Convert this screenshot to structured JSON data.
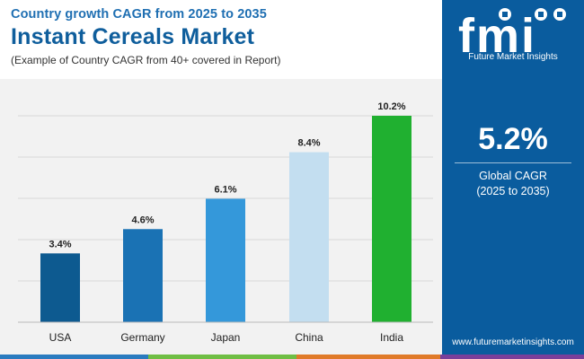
{
  "header": {
    "subtitle": "Country growth CAGR from 2025 to 2035",
    "title": "Instant Cereals Market",
    "note": "(Example of Country CAGR from 40+ covered in Report)"
  },
  "chart_data": {
    "type": "bar",
    "categories": [
      "USA",
      "Germany",
      "Japan",
      "China",
      "India"
    ],
    "values": [
      3.4,
      4.6,
      6.1,
      8.4,
      10.2
    ],
    "value_labels": [
      "3.4%",
      "4.6%",
      "6.1%",
      "8.4%",
      "10.2%"
    ],
    "bar_colors": [
      "#0d5a90",
      "#1a72b4",
      "#3498da",
      "#c3def0",
      "#20b030"
    ],
    "ylim": [
      0,
      10.2
    ],
    "grid": true,
    "legend": "none"
  },
  "sidebar": {
    "logo_alt": "fmi",
    "logo_text": "Future Market Insights",
    "global_cagr_value": "5.2%",
    "global_cagr_label": "Global CAGR",
    "global_cagr_period": "(2025 to 2035)",
    "website": "www.futuremarketinsights.com",
    "background_color": "#0a5c9e"
  },
  "footer": {
    "stripe_colors": [
      "#2a7bbf",
      "#6fbe44",
      "#e07a29",
      "#7a3f9a"
    ]
  }
}
